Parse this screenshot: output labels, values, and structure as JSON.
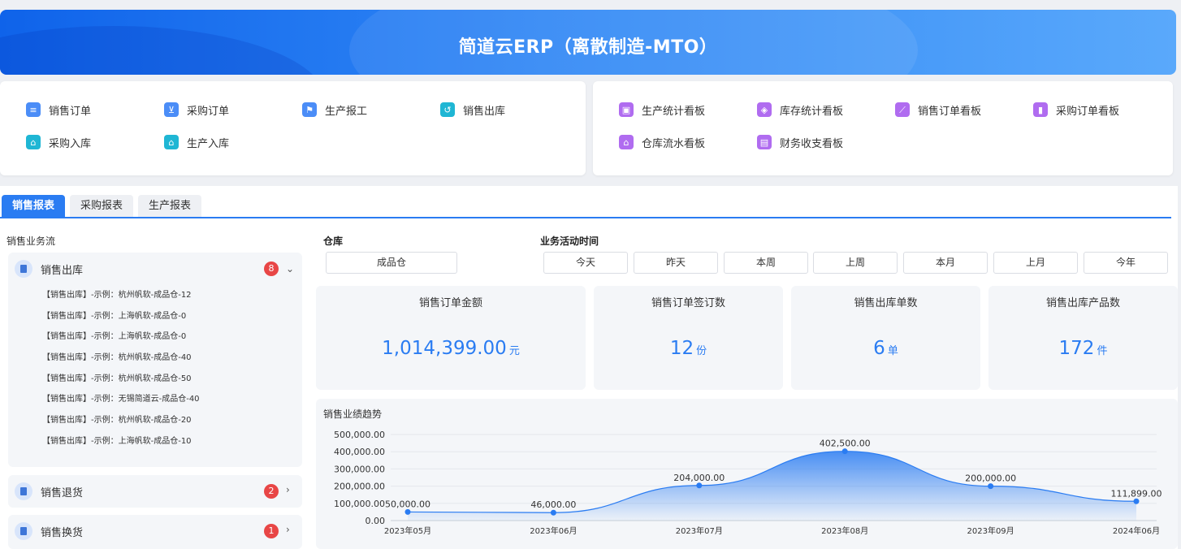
{
  "banner": {
    "title": "简道云ERP（离散制造-MTO）"
  },
  "quick_left": [
    {
      "label": "销售订单",
      "icon": "document-icon"
    },
    {
      "label": "采购订单",
      "icon": "cart-icon"
    },
    {
      "label": "生产报工",
      "icon": "flag-icon"
    },
    {
      "label": "销售出库",
      "icon": "outbound-icon"
    },
    {
      "label": "采购入库",
      "icon": "inbound-icon"
    },
    {
      "label": "生产入库",
      "icon": "inbound-icon"
    }
  ],
  "quick_right": [
    {
      "label": "生产统计看板",
      "icon": "dashboard-icon"
    },
    {
      "label": "库存统计看板",
      "icon": "cube-icon"
    },
    {
      "label": "销售订单看板",
      "icon": "line-chart-icon"
    },
    {
      "label": "采购订单看板",
      "icon": "bar-chart-icon"
    },
    {
      "label": "仓库流水看板",
      "icon": "warehouse-icon"
    },
    {
      "label": "财务收支看板",
      "icon": "finance-icon"
    }
  ],
  "tabs": [
    {
      "label": "销售报表",
      "active": true
    },
    {
      "label": "采购报表",
      "active": false
    },
    {
      "label": "生产报表",
      "active": false
    }
  ],
  "flow": {
    "title": "销售业务流",
    "groups": [
      {
        "label": "销售出库",
        "count": "8",
        "expanded": true,
        "entries": [
          "【销售出库】-示例：杭州帆软-成品仓-12",
          "【销售出库】-示例：上海帆软-成品仓-0",
          "【销售出库】-示例：上海帆软-成品仓-0",
          "【销售出库】-示例：杭州帆软-成品仓-40",
          "【销售出库】-示例：杭州帆软-成品仓-50",
          "【销售出库】-示例：无锡简道云-成品仓-40",
          "【销售出库】-示例：杭州帆软-成品仓-20",
          "【销售出库】-示例：上海帆软-成品仓-10"
        ]
      },
      {
        "label": "销售退货",
        "count": "2",
        "expanded": false,
        "entries": []
      },
      {
        "label": "销售换货",
        "count": "1",
        "expanded": false,
        "entries": []
      }
    ]
  },
  "filters": {
    "warehouse_label": "仓库",
    "warehouse_value": "成品仓",
    "time_label": "业务活动时间",
    "time_options": [
      "今天",
      "昨天",
      "本周",
      "上周",
      "本月",
      "上月",
      "今年"
    ]
  },
  "kpis": [
    {
      "title": "销售订单金额",
      "value": "1,014,399.00",
      "unit": "元"
    },
    {
      "title": "销售订单签订数",
      "value": "12",
      "unit": "份"
    },
    {
      "title": "销售出库单数",
      "value": "6",
      "unit": "单"
    },
    {
      "title": "销售出库产品数",
      "value": "172",
      "unit": "件"
    }
  ],
  "chart_data": {
    "type": "area",
    "title": "销售业绩趋势",
    "categories": [
      "2023年05月",
      "2023年06月",
      "2023年07月",
      "2023年08月",
      "2023年09月",
      "2024年06月"
    ],
    "values": [
      50000,
      46000,
      204000,
      402500,
      200000,
      111899
    ],
    "value_labels": [
      "50,000.00",
      "46,000.00",
      "204,000.00",
      "402,500.00",
      "200,000.00",
      "111,899.00"
    ],
    "y_ticks": [
      "0.00",
      "100,000.00",
      "200,000.00",
      "300,000.00",
      "400,000.00",
      "500,000.00"
    ],
    "ylim": [
      0,
      500000
    ],
    "color": "#2a7cf2"
  }
}
